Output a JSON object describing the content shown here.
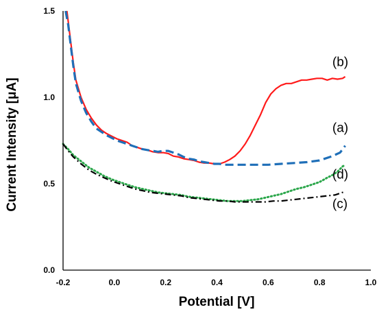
{
  "chart_data": {
    "type": "line",
    "xlabel": "Potential [V]",
    "ylabel": "Current Intensity [μA]",
    "xlim": [
      -0.2,
      1.0
    ],
    "ylim": [
      0.0,
      1.5
    ],
    "x_ticks": [
      "-0.2",
      "0.0",
      "0.2",
      "0.4",
      "0.6",
      "0.8",
      "1.0"
    ],
    "y_ticks": [
      "0.0",
      "0.5",
      "1.0",
      "1.5"
    ],
    "grid": false,
    "series": [
      {
        "name": "(b)",
        "color": "#ff1a1a",
        "style": "solid",
        "points": [
          [
            -0.185,
            1.5
          ],
          [
            -0.18,
            1.44
          ],
          [
            -0.17,
            1.32
          ],
          [
            -0.16,
            1.2
          ],
          [
            -0.15,
            1.1
          ],
          [
            -0.13,
            1.0
          ],
          [
            -0.11,
            0.93
          ],
          [
            -0.09,
            0.88
          ],
          [
            -0.07,
            0.84
          ],
          [
            -0.05,
            0.81
          ],
          [
            -0.03,
            0.79
          ],
          [
            -0.01,
            0.775
          ],
          [
            0.01,
            0.76
          ],
          [
            0.03,
            0.75
          ],
          [
            0.05,
            0.74
          ],
          [
            0.07,
            0.72
          ],
          [
            0.09,
            0.71
          ],
          [
            0.11,
            0.7
          ],
          [
            0.13,
            0.695
          ],
          [
            0.15,
            0.685
          ],
          [
            0.17,
            0.68
          ],
          [
            0.19,
            0.68
          ],
          [
            0.21,
            0.675
          ],
          [
            0.23,
            0.66
          ],
          [
            0.25,
            0.655
          ],
          [
            0.27,
            0.645
          ],
          [
            0.29,
            0.64
          ],
          [
            0.31,
            0.635
          ],
          [
            0.33,
            0.625
          ],
          [
            0.35,
            0.62
          ],
          [
            0.37,
            0.62
          ],
          [
            0.39,
            0.615
          ],
          [
            0.41,
            0.615
          ],
          [
            0.43,
            0.625
          ],
          [
            0.45,
            0.64
          ],
          [
            0.47,
            0.66
          ],
          [
            0.49,
            0.69
          ],
          [
            0.51,
            0.73
          ],
          [
            0.53,
            0.78
          ],
          [
            0.55,
            0.84
          ],
          [
            0.57,
            0.9
          ],
          [
            0.59,
            0.97
          ],
          [
            0.61,
            1.02
          ],
          [
            0.63,
            1.05
          ],
          [
            0.65,
            1.07
          ],
          [
            0.67,
            1.08
          ],
          [
            0.69,
            1.08
          ],
          [
            0.71,
            1.09
          ],
          [
            0.73,
            1.1
          ],
          [
            0.75,
            1.1
          ],
          [
            0.77,
            1.105
          ],
          [
            0.79,
            1.11
          ],
          [
            0.81,
            1.11
          ],
          [
            0.83,
            1.1
          ],
          [
            0.85,
            1.11
          ],
          [
            0.87,
            1.105
          ],
          [
            0.89,
            1.11
          ],
          [
            0.9,
            1.12
          ]
        ]
      },
      {
        "name": "(a)",
        "color": "#1f6fb8",
        "style": "dashed",
        "points": [
          [
            -0.19,
            1.5
          ],
          [
            -0.18,
            1.42
          ],
          [
            -0.17,
            1.3
          ],
          [
            -0.16,
            1.18
          ],
          [
            -0.15,
            1.08
          ],
          [
            -0.13,
            0.98
          ],
          [
            -0.11,
            0.91
          ],
          [
            -0.09,
            0.86
          ],
          [
            -0.07,
            0.82
          ],
          [
            -0.05,
            0.8
          ],
          [
            -0.03,
            0.78
          ],
          [
            -0.01,
            0.765
          ],
          [
            0.01,
            0.75
          ],
          [
            0.03,
            0.74
          ],
          [
            0.05,
            0.73
          ],
          [
            0.07,
            0.72
          ],
          [
            0.09,
            0.71
          ],
          [
            0.11,
            0.7
          ],
          [
            0.13,
            0.695
          ],
          [
            0.15,
            0.69
          ],
          [
            0.17,
            0.685
          ],
          [
            0.19,
            0.69
          ],
          [
            0.21,
            0.69
          ],
          [
            0.23,
            0.68
          ],
          [
            0.25,
            0.67
          ],
          [
            0.27,
            0.655
          ],
          [
            0.29,
            0.645
          ],
          [
            0.31,
            0.64
          ],
          [
            0.33,
            0.63
          ],
          [
            0.35,
            0.625
          ],
          [
            0.37,
            0.62
          ],
          [
            0.39,
            0.615
          ],
          [
            0.41,
            0.615
          ],
          [
            0.43,
            0.61
          ],
          [
            0.45,
            0.61
          ],
          [
            0.47,
            0.61
          ],
          [
            0.49,
            0.61
          ],
          [
            0.51,
            0.61
          ],
          [
            0.55,
            0.61
          ],
          [
            0.6,
            0.61
          ],
          [
            0.65,
            0.615
          ],
          [
            0.7,
            0.62
          ],
          [
            0.75,
            0.625
          ],
          [
            0.8,
            0.635
          ],
          [
            0.85,
            0.66
          ],
          [
            0.88,
            0.68
          ],
          [
            0.9,
            0.72
          ]
        ]
      },
      {
        "name": "(d)",
        "color": "#2aa64a",
        "style": "dotted",
        "points": [
          [
            -0.2,
            0.73
          ],
          [
            -0.18,
            0.7
          ],
          [
            -0.16,
            0.665
          ],
          [
            -0.13,
            0.63
          ],
          [
            -0.1,
            0.595
          ],
          [
            -0.07,
            0.57
          ],
          [
            -0.04,
            0.545
          ],
          [
            -0.01,
            0.525
          ],
          [
            0.02,
            0.51
          ],
          [
            0.05,
            0.495
          ],
          [
            0.08,
            0.48
          ],
          [
            0.11,
            0.47
          ],
          [
            0.14,
            0.46
          ],
          [
            0.17,
            0.45
          ],
          [
            0.2,
            0.445
          ],
          [
            0.23,
            0.44
          ],
          [
            0.26,
            0.435
          ],
          [
            0.29,
            0.425
          ],
          [
            0.32,
            0.42
          ],
          [
            0.35,
            0.415
          ],
          [
            0.38,
            0.41
          ],
          [
            0.41,
            0.405
          ],
          [
            0.44,
            0.4
          ],
          [
            0.47,
            0.4
          ],
          [
            0.5,
            0.4
          ],
          [
            0.53,
            0.405
          ],
          [
            0.56,
            0.41
          ],
          [
            0.59,
            0.42
          ],
          [
            0.62,
            0.43
          ],
          [
            0.65,
            0.44
          ],
          [
            0.68,
            0.455
          ],
          [
            0.71,
            0.47
          ],
          [
            0.74,
            0.48
          ],
          [
            0.77,
            0.495
          ],
          [
            0.8,
            0.51
          ],
          [
            0.83,
            0.535
          ],
          [
            0.85,
            0.55
          ],
          [
            0.87,
            0.57
          ],
          [
            0.89,
            0.6
          ],
          [
            0.9,
            0.61
          ]
        ]
      },
      {
        "name": "(c)",
        "color": "#000000",
        "style": "dashdot",
        "points": [
          [
            -0.2,
            0.73
          ],
          [
            -0.18,
            0.69
          ],
          [
            -0.16,
            0.655
          ],
          [
            -0.13,
            0.615
          ],
          [
            -0.1,
            0.58
          ],
          [
            -0.07,
            0.555
          ],
          [
            -0.04,
            0.535
          ],
          [
            -0.01,
            0.515
          ],
          [
            0.02,
            0.5
          ],
          [
            0.05,
            0.485
          ],
          [
            0.08,
            0.47
          ],
          [
            0.11,
            0.46
          ],
          [
            0.14,
            0.45
          ],
          [
            0.17,
            0.445
          ],
          [
            0.2,
            0.44
          ],
          [
            0.23,
            0.435
          ],
          [
            0.26,
            0.43
          ],
          [
            0.29,
            0.42
          ],
          [
            0.32,
            0.415
          ],
          [
            0.35,
            0.41
          ],
          [
            0.38,
            0.405
          ],
          [
            0.41,
            0.4
          ],
          [
            0.44,
            0.4
          ],
          [
            0.47,
            0.395
          ],
          [
            0.5,
            0.395
          ],
          [
            0.53,
            0.395
          ],
          [
            0.56,
            0.395
          ],
          [
            0.59,
            0.395
          ],
          [
            0.62,
            0.4
          ],
          [
            0.65,
            0.4
          ],
          [
            0.68,
            0.405
          ],
          [
            0.71,
            0.41
          ],
          [
            0.74,
            0.415
          ],
          [
            0.77,
            0.42
          ],
          [
            0.8,
            0.425
          ],
          [
            0.83,
            0.43
          ],
          [
            0.86,
            0.435
          ],
          [
            0.88,
            0.445
          ],
          [
            0.9,
            0.455
          ]
        ]
      }
    ],
    "annotations": [
      {
        "text": "(b)",
        "x": 0.85,
        "y": 1.18
      },
      {
        "text": "(a)",
        "x": 0.85,
        "y": 0.8
      },
      {
        "text": "(d)",
        "x": 0.85,
        "y": 0.53
      },
      {
        "text": "(c)",
        "x": 0.85,
        "y": 0.36
      }
    ]
  }
}
